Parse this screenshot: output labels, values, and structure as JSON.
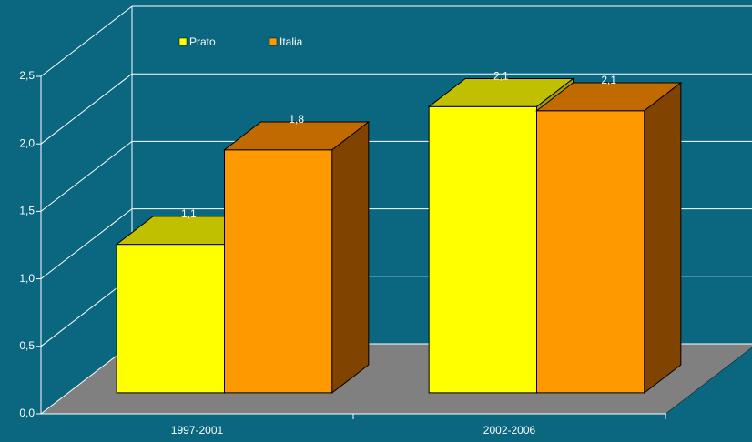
{
  "chart_data": {
    "type": "bar3d",
    "categories": [
      "1997-2001",
      "2002-2006"
    ],
    "series": [
      {
        "name": "Prato",
        "color": "#ffff00",
        "top_color": "#c0c000",
        "side_color": "#a0a000",
        "values": [
          1.1,
          2.12
        ],
        "value_labels": [
          "1,1",
          "2,1"
        ]
      },
      {
        "name": "Italia",
        "color": "#ff9900",
        "top_color": "#c06a00",
        "side_color": "#804400",
        "values": [
          1.8,
          2.09
        ],
        "value_labels": [
          "1,8",
          "2,1"
        ]
      }
    ],
    "ylim": [
      0,
      2.5
    ],
    "yticks": [
      {
        "value": 0,
        "label": "0,0"
      },
      {
        "value": 0.5,
        "label": "0,5"
      },
      {
        "value": 1,
        "label": "1,0"
      },
      {
        "value": 1.5,
        "label": "1,5"
      },
      {
        "value": 2,
        "label": "2,0"
      },
      {
        "value": 2.5,
        "label": "2,5"
      }
    ],
    "grid": true,
    "legend": "top"
  }
}
